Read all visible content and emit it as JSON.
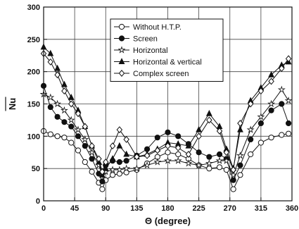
{
  "chart_data": {
    "type": "line",
    "xlabel": "Θ (degree)",
    "ylabel": "Nu",
    "xlim": [
      0,
      360
    ],
    "ylim": [
      0,
      300
    ],
    "x_ticks": [
      0,
      45,
      90,
      135,
      180,
      225,
      270,
      315,
      360
    ],
    "y_ticks": [
      0,
      50,
      100,
      150,
      200,
      250,
      300
    ],
    "grid": true,
    "legend_position": "top-center",
    "series": [
      {
        "name": "Without H.T.P.",
        "marker": "open-circle",
        "x": [
          0,
          10,
          20,
          30,
          40,
          50,
          60,
          70,
          80,
          85,
          90,
          100,
          110,
          120,
          135,
          150,
          165,
          180,
          195,
          210,
          225,
          240,
          255,
          265,
          275,
          285,
          300,
          315,
          330,
          345,
          355
        ],
        "values": [
          108,
          103,
          100,
          98,
          90,
          78,
          60,
          45,
          28,
          18,
          32,
          40,
          42,
          44,
          48,
          58,
          68,
          75,
          72,
          65,
          55,
          50,
          52,
          48,
          18,
          40,
          72,
          90,
          98,
          102,
          104
        ]
      },
      {
        "name": "Screen",
        "marker": "filled-circle",
        "x": [
          0,
          10,
          20,
          30,
          40,
          50,
          60,
          70,
          80,
          85,
          90,
          100,
          110,
          120,
          135,
          150,
          165,
          180,
          195,
          210,
          225,
          240,
          255,
          265,
          275,
          285,
          300,
          315,
          330,
          345,
          355
        ],
        "values": [
          178,
          145,
          130,
          122,
          115,
          100,
          85,
          65,
          42,
          30,
          55,
          62,
          60,
          62,
          70,
          80,
          98,
          106,
          100,
          88,
          75,
          68,
          72,
          65,
          32,
          55,
          95,
          120,
          140,
          150,
          120
        ]
      },
      {
        "name": "Horizontal",
        "marker": "open-star",
        "x": [
          0,
          10,
          20,
          30,
          40,
          50,
          60,
          70,
          80,
          85,
          90,
          100,
          110,
          120,
          135,
          150,
          165,
          180,
          195,
          210,
          225,
          240,
          255,
          265,
          275,
          285,
          300,
          315,
          330,
          345,
          355
        ],
        "values": [
          165,
          160,
          150,
          140,
          125,
          110,
          95,
          75,
          55,
          40,
          45,
          48,
          48,
          50,
          50,
          55,
          60,
          62,
          62,
          58,
          55,
          58,
          62,
          62,
          40,
          70,
          110,
          130,
          150,
          172,
          155
        ]
      },
      {
        "name": "Horizontal & vertical",
        "marker": "filled-triangle",
        "x": [
          0,
          10,
          20,
          30,
          40,
          50,
          60,
          70,
          80,
          85,
          90,
          100,
          110,
          120,
          135,
          150,
          165,
          180,
          195,
          210,
          225,
          240,
          255,
          265,
          275,
          285,
          300,
          315,
          330,
          345,
          355
        ],
        "values": [
          238,
          228,
          205,
          180,
          160,
          140,
          115,
          85,
          60,
          40,
          50,
          65,
          85,
          72,
          68,
          72,
          80,
          90,
          88,
          85,
          110,
          135,
          115,
          80,
          50,
          110,
          155,
          175,
          195,
          210,
          215
        ]
      },
      {
        "name": "Complex screen",
        "marker": "open-diamond",
        "x": [
          0,
          10,
          20,
          30,
          40,
          50,
          60,
          70,
          80,
          85,
          90,
          100,
          110,
          120,
          135,
          150,
          165,
          180,
          195,
          210,
          225,
          240,
          255,
          265,
          275,
          285,
          300,
          315,
          330,
          345,
          355
        ],
        "values": [
          228,
          215,
          195,
          170,
          150,
          135,
          115,
          85,
          65,
          45,
          60,
          85,
          110,
          95,
          68,
          70,
          78,
          85,
          82,
          72,
          100,
          125,
          108,
          75,
          48,
          120,
          150,
          170,
          185,
          205,
          220
        ]
      }
    ]
  }
}
